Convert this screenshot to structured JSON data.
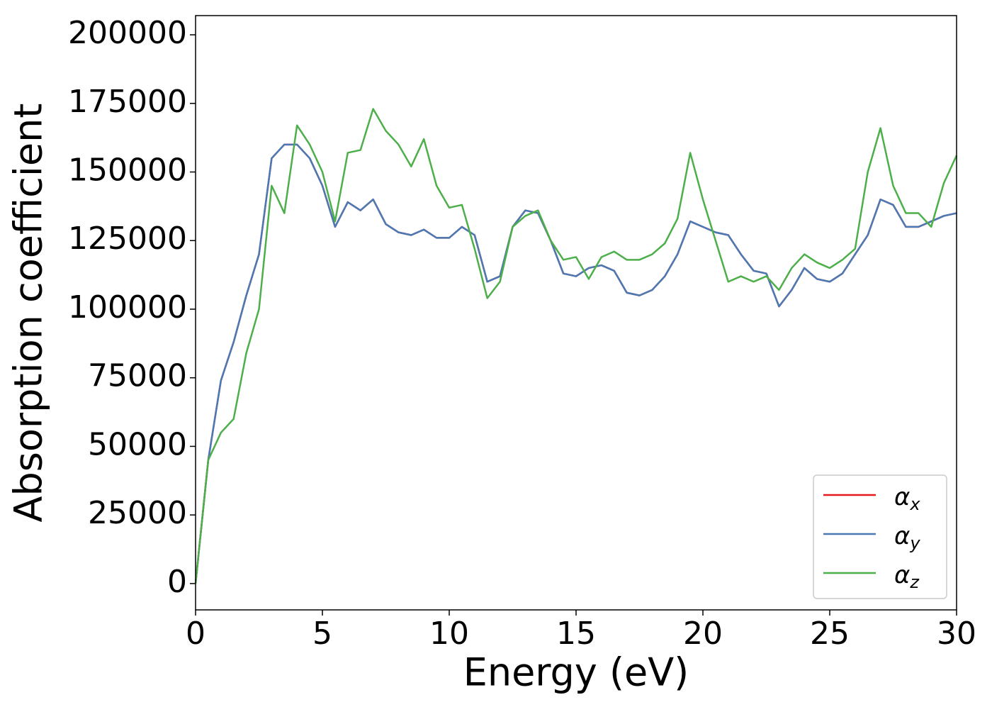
{
  "chart_data": {
    "type": "line",
    "xlabel": "Energy (eV)",
    "ylabel": "Absorption coefficient",
    "x": [
      0,
      0.5,
      1,
      1.5,
      2,
      2.5,
      3,
      3.5,
      4,
      4.5,
      5,
      5.5,
      6,
      6.5,
      7,
      7.5,
      8,
      8.5,
      9,
      9.5,
      10,
      10.5,
      11,
      11.5,
      12,
      12.5,
      13,
      13.5,
      14,
      14.5,
      15,
      15.5,
      16,
      16.5,
      17,
      17.5,
      18,
      18.5,
      19,
      19.5,
      20,
      20.5,
      21,
      21.5,
      22,
      22.5,
      23,
      23.5,
      24,
      24.5,
      25,
      25.5,
      26,
      26.5,
      27,
      27.5,
      28,
      28.5,
      29,
      29.5,
      30
    ],
    "series": [
      {
        "name": "αx",
        "color": "#e41a1c",
        "values": [
          0,
          45000,
          74000,
          88000,
          105000,
          120000,
          155000,
          160000,
          160000,
          155000,
          145000,
          130000,
          139000,
          136000,
          140000,
          131000,
          128000,
          127000,
          129000,
          126000,
          126000,
          130000,
          127000,
          110000,
          112000,
          130000,
          136000,
          135000,
          125000,
          113000,
          112000,
          115000,
          116000,
          114000,
          106000,
          105000,
          107000,
          112000,
          120000,
          132000,
          130000,
          128000,
          127000,
          120000,
          114000,
          113000,
          101000,
          107000,
          115000,
          111000,
          110000,
          113000,
          120000,
          127000,
          140000,
          138000,
          130000,
          130000,
          132000,
          134000,
          135000
        ]
      },
      {
        "name": "αy",
        "color": "#4a7ab5",
        "values": [
          0,
          45000,
          74000,
          88000,
          105000,
          120000,
          155000,
          160000,
          160000,
          155000,
          145000,
          130000,
          139000,
          136000,
          140000,
          131000,
          128000,
          127000,
          129000,
          126000,
          126000,
          130000,
          127000,
          110000,
          112000,
          130000,
          136000,
          135000,
          125000,
          113000,
          112000,
          115000,
          116000,
          114000,
          106000,
          105000,
          107000,
          112000,
          120000,
          132000,
          130000,
          128000,
          127000,
          120000,
          114000,
          113000,
          101000,
          107000,
          115000,
          111000,
          110000,
          113000,
          120000,
          127000,
          140000,
          138000,
          130000,
          130000,
          132000,
          134000,
          135000
        ]
      },
      {
        "name": "αz",
        "color": "#4daf4a",
        "values": [
          0,
          45000,
          55000,
          60000,
          84000,
          100000,
          145000,
          135000,
          167000,
          160000,
          150000,
          132000,
          157000,
          158000,
          173000,
          165000,
          160000,
          152000,
          162000,
          145000,
          137000,
          138000,
          122000,
          104000,
          110000,
          130000,
          134000,
          136000,
          125000,
          118000,
          119000,
          111000,
          119000,
          121000,
          118000,
          118000,
          120000,
          124000,
          133000,
          157000,
          140000,
          125000,
          110000,
          112000,
          110000,
          112000,
          107000,
          115000,
          120000,
          117000,
          115000,
          118000,
          122000,
          150000,
          166000,
          145000,
          135000,
          135000,
          130000,
          146000,
          156000
        ]
      }
    ],
    "xlim": [
      0,
      30
    ],
    "xticks": [
      0,
      5,
      10,
      15,
      20,
      25,
      30
    ],
    "ylim": [
      -9600,
      207000
    ],
    "yticks": [
      0,
      25000,
      50000,
      75000,
      100000,
      125000,
      150000,
      175000,
      200000
    ],
    "legend": "lower right"
  }
}
